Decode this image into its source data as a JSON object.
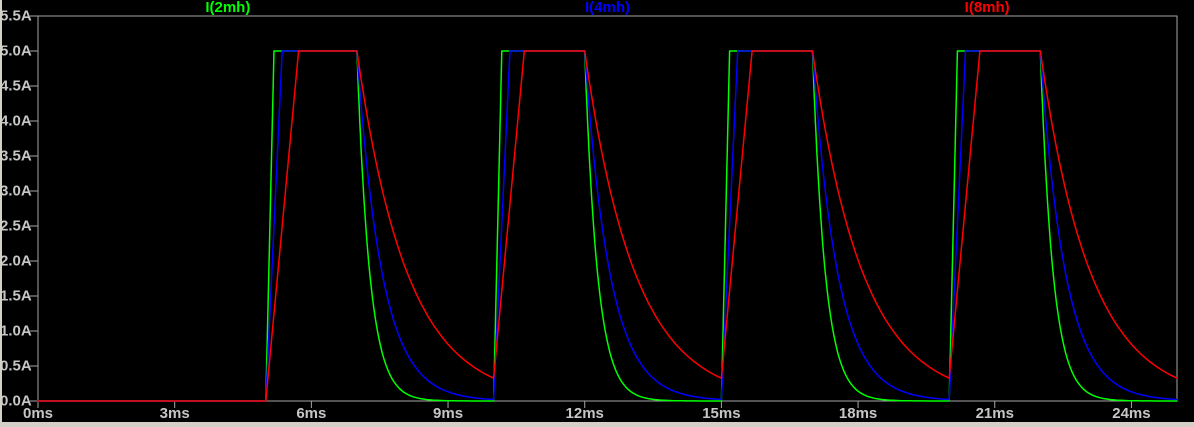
{
  "window": {
    "kind": "waveform-viewer-plot-pane"
  },
  "colors": {
    "background": "#000000",
    "plot_axis": "#a6a6a6",
    "axis_text": "#c6c6c6",
    "window_edge": "#d4d0c8",
    "trace_green": "#00ff00",
    "trace_blue": "#0000ff",
    "trace_red": "#ff0000"
  },
  "chart_data": {
    "type": "line",
    "title": "",
    "xlabel": "",
    "ylabel": "",
    "grid": false,
    "legend_position": "top-centered-per-trace",
    "x_axis": {
      "unit": "ms",
      "min": 0,
      "max": 25,
      "tick_step": 3,
      "ticks": [
        {
          "value": 0,
          "label": "0ms"
        },
        {
          "value": 3,
          "label": "3ms"
        },
        {
          "value": 6,
          "label": "6ms"
        },
        {
          "value": 9,
          "label": "9ms"
        },
        {
          "value": 12,
          "label": "12ms"
        },
        {
          "value": 15,
          "label": "15ms"
        },
        {
          "value": 18,
          "label": "18ms"
        },
        {
          "value": 21,
          "label": "21ms"
        },
        {
          "value": 24,
          "label": "24ms"
        }
      ]
    },
    "y_axis": {
      "unit": "A",
      "min": 0,
      "max": 5.5,
      "tick_step": 0.5,
      "ticks": [
        {
          "value": 5.5,
          "label": "5.5A"
        },
        {
          "value": 5.0,
          "label": "5.0A"
        },
        {
          "value": 4.5,
          "label": "4.5A"
        },
        {
          "value": 4.0,
          "label": "4.0A"
        },
        {
          "value": 3.5,
          "label": "3.5A"
        },
        {
          "value": 3.0,
          "label": "3.0A"
        },
        {
          "value": 2.5,
          "label": "2.5A"
        },
        {
          "value": 2.0,
          "label": "2.0A"
        },
        {
          "value": 1.5,
          "label": "1.5A"
        },
        {
          "value": 1.0,
          "label": "1.0A"
        },
        {
          "value": 0.5,
          "label": "0.5A"
        },
        {
          "value": 0.0,
          "label": "0.0A"
        }
      ]
    },
    "legend": [
      {
        "label": "I(2mh)",
        "color": "#00ff00"
      },
      {
        "label": "I(4mh)",
        "color": "#0000ff"
      },
      {
        "label": "I(8mh)",
        "color": "#ff0000"
      }
    ],
    "waveform_description": "Periodic trapezoidal current pulses: flat at 0A until 5ms, then pulses starting at 5,10,15,20ms; linear ramp up to 5.0A, flat top for 2ms, exponential decay for 3ms until next pulse; final decay runs to 25ms at right edge.",
    "series": [
      {
        "name": "I(2mh)",
        "color": "#00ff00",
        "initial_A": 0,
        "amplitude_A": 5.0,
        "pulse_start_ms": 5,
        "pulse_period_ms": 5,
        "pulse_on_ms": 2,
        "rise_ms": 0.18,
        "decay_tau_ms": 0.28
      },
      {
        "name": "I(4mh)",
        "color": "#0000ff",
        "initial_A": 0,
        "amplitude_A": 5.0,
        "pulse_start_ms": 5,
        "pulse_period_ms": 5,
        "pulse_on_ms": 2,
        "rise_ms": 0.36,
        "decay_tau_ms": 0.55
      },
      {
        "name": "I(8mh)",
        "color": "#ff0000",
        "initial_A": 0,
        "amplitude_A": 5.0,
        "pulse_start_ms": 5,
        "pulse_period_ms": 5,
        "pulse_on_ms": 2,
        "rise_ms": 0.72,
        "decay_tau_ms": 1.1
      }
    ]
  }
}
